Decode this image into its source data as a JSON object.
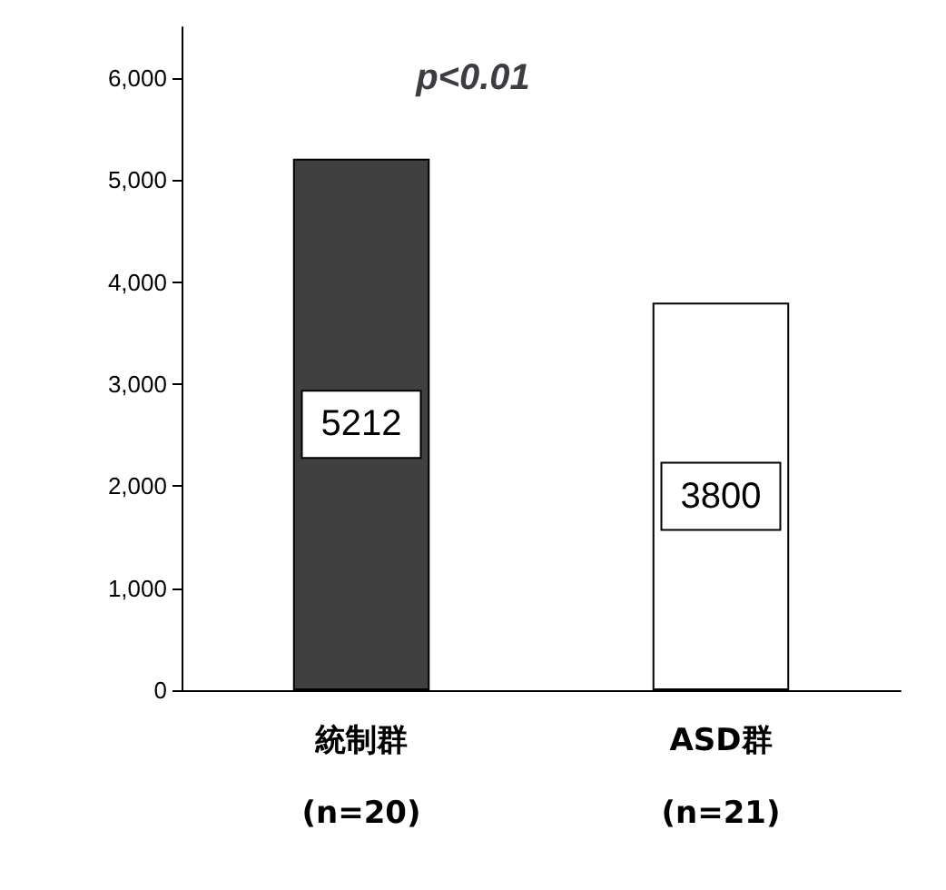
{
  "chart_data": {
    "type": "bar",
    "categories": [
      "統制群\n(n=20)",
      "ASD群\n(n=21)"
    ],
    "values": [
      5212,
      3800
    ],
    "colors": [
      "#404040",
      "#ffffff"
    ],
    "ylim": [
      0,
      6500
    ],
    "yticks": [
      {
        "value": 0,
        "label": "0"
      },
      {
        "value": 1000,
        "label": "1,000"
      },
      {
        "value": 2000,
        "label": "2,000"
      },
      {
        "value": 3000,
        "label": "3,000"
      },
      {
        "value": 4000,
        "label": "4,000"
      },
      {
        "value": 5000,
        "label": "5,000"
      },
      {
        "value": 6000,
        "label": "6,000"
      }
    ],
    "annotations": [
      "p<0.01"
    ],
    "data_labels": true,
    "grid": false
  }
}
